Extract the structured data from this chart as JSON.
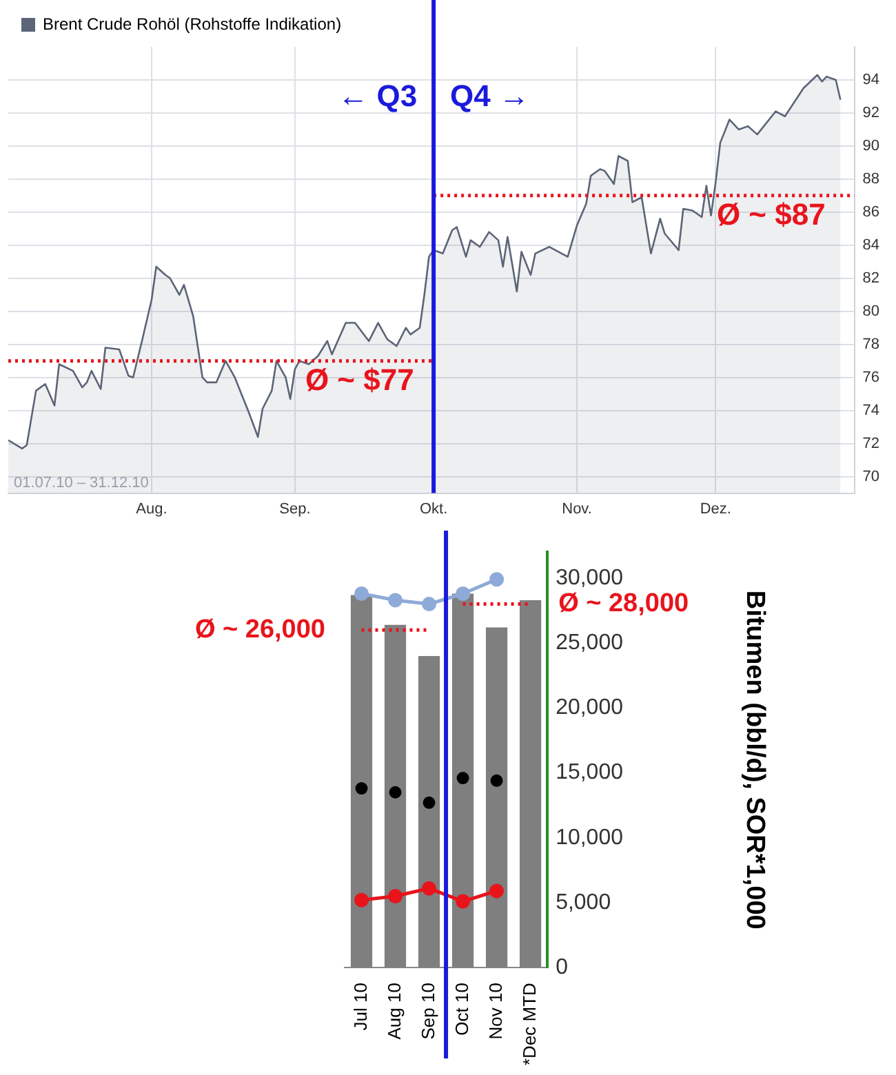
{
  "chart_data": [
    {
      "type": "area",
      "x": [
        "--07-01",
        "--07-04",
        "--07-05",
        "--07-07",
        "--07-09",
        "--07-11",
        "--07-12",
        "--07-15",
        "--07-17",
        "--07-18",
        "--07-19",
        "--07-21",
        "--07-22",
        "--07-25",
        "--07-27",
        "--07-28",
        "--07-30",
        "--08-01",
        "--08-02",
        "--08-04",
        "--08-05",
        "--08-07",
        "--08-08",
        "--08-10",
        "--08-12",
        "--08-13",
        "--08-15",
        "--08-17",
        "--08-19",
        "--08-22",
        "--08-24",
        "--08-25",
        "--08-27",
        "--08-28",
        "--08-30",
        "--08-31",
        "--09-01",
        "--09-02",
        "--09-04",
        "--09-06",
        "--09-08",
        "--09-09",
        "--09-12",
        "--09-14",
        "--09-17",
        "--09-19",
        "--09-21",
        "--09-23",
        "--09-25",
        "--09-26",
        "--09-28",
        "--09-29",
        "--09-30",
        "--10-01",
        "--10-03",
        "--10-05",
        "--10-06",
        "--10-08",
        "--10-09",
        "--10-11",
        "--10-13",
        "--10-15",
        "--10-16",
        "--10-17",
        "--10-19",
        "--10-20",
        "--10-22",
        "--10-23",
        "--10-26",
        "--10-28",
        "--10-30",
        "--11-01",
        "--11-03",
        "--11-04",
        "--11-06",
        "--11-07",
        "--11-09",
        "--11-10",
        "--11-12",
        "--11-13",
        "--11-15",
        "--11-16",
        "--11-17",
        "--11-19",
        "--11-20",
        "--11-23",
        "--11-24",
        "--11-26",
        "--11-28",
        "--11-29",
        "--11-30",
        "--12-01",
        "--12-02",
        "--12-04",
        "--12-06",
        "--12-08",
        "--12-10",
        "--12-14",
        "--12-16",
        "--12-20",
        "--12-23",
        "--12-24",
        "--12-25",
        "--12-27",
        "--12-28"
      ],
      "series": [
        {
          "name": "Brent Crude Rohöl (Rohstoffe Indikation)",
          "color": "#5b6577",
          "values": [
            72.2,
            71.7,
            71.9,
            75.2,
            75.6,
            74.3,
            76.8,
            76.4,
            75.4,
            75.7,
            76.4,
            75.3,
            77.8,
            77.7,
            76.1,
            76.0,
            78.3,
            80.7,
            82.7,
            82.2,
            82.0,
            81.0,
            81.6,
            79.7,
            76.0,
            75.7,
            75.7,
            77.0,
            76.0,
            73.9,
            72.4,
            74.1,
            75.2,
            77.0,
            76.0,
            74.7,
            76.5,
            77.0,
            76.8,
            77.3,
            78.2,
            77.4,
            79.3,
            79.3,
            78.2,
            79.3,
            78.3,
            77.9,
            79.0,
            78.6,
            79.0,
            81.0,
            83.3,
            83.7,
            83.5,
            84.9,
            85.1,
            83.3,
            84.3,
            83.9,
            84.8,
            84.3,
            82.7,
            84.5,
            81.2,
            83.6,
            82.2,
            83.5,
            83.9,
            83.6,
            83.3,
            85.2,
            86.5,
            88.2,
            88.6,
            88.5,
            87.7,
            89.4,
            89.1,
            86.6,
            86.9,
            85.2,
            83.5,
            85.6,
            84.7,
            83.7,
            86.2,
            86.1,
            85.7,
            87.6,
            85.8,
            87.8,
            90.2,
            91.6,
            91.0,
            91.2,
            90.7,
            92.1,
            91.8,
            93.5,
            94.3,
            93.9,
            94.2,
            94.0,
            92.8
          ]
        },
        {
          "type": "line",
          "x": [
            "--07-01",
            "--10-01"
          ],
          "color": "#e8141c",
          "line_style": "dotted",
          "values": [
            77,
            77
          ]
        },
        {
          "type": "line",
          "x": [
            "--10-01",
            "--12-31"
          ],
          "color": "#e8141c",
          "line_style": "dotted",
          "values": [
            87,
            87
          ]
        }
      ],
      "xlim": [
        "--07-01",
        "--12-31"
      ],
      "xticks": [
        {
          "value": "--08-01",
          "label": "Aug."
        },
        {
          "value": "--09-01",
          "label": "Sep."
        },
        {
          "value": "--10-01",
          "label": "Okt."
        },
        {
          "value": "--11-01",
          "label": "Nov."
        },
        {
          "value": "--12-01",
          "label": "Dez."
        }
      ],
      "ylim": [
        69,
        96
      ],
      "yticks": [
        70,
        72,
        74,
        76,
        78,
        80,
        82,
        84,
        86,
        88,
        90,
        92,
        94
      ],
      "grid": true,
      "legend": "top left",
      "ref_lines": [
        {
          "axis": "x",
          "value": "--10-01",
          "color": "#1a1adc"
        }
      ],
      "annotations": [
        "← Q3",
        "Q4 →",
        {
          "text": "Ø ~ $77",
          "x": "--09-15",
          "y": 77
        },
        {
          "text": "Ø ~ $87",
          "x": "--12-13",
          "y": 87
        },
        "01.07.10 – 31.12.10"
      ]
    },
    {
      "type": "bar",
      "categories": [
        "Jul 10",
        "Aug 10",
        "Sep 10",
        "Oct 10",
        "Nov 10",
        "*Dec MTD"
      ],
      "series": [
        {
          "color": "#7f7f7f",
          "values": [
            28700,
            26400,
            24000,
            28800,
            26200,
            28300
          ]
        },
        {
          "type": "line",
          "color": "#8eaad8",
          "marker": "circle",
          "values": [
            28800,
            28300,
            28000,
            28800,
            29900,
            null
          ]
        },
        {
          "type": "scatter",
          "color": "#000000",
          "marker": "circle",
          "x": [
            "Jul 10",
            "Aug 10",
            "Sep 10",
            "Oct 10",
            "Nov 10"
          ],
          "values": [
            13800,
            13500,
            12700,
            14600,
            14400
          ]
        },
        {
          "type": "line",
          "color": "#e8141c",
          "marker": "circle",
          "values": [
            5200,
            5500,
            6100,
            5100,
            5900,
            null
          ]
        },
        {
          "type": "line",
          "color": "#e8141c",
          "line_style": "dotted",
          "values": [
            26000,
            26000,
            26000,
            null,
            null,
            null
          ]
        },
        {
          "type": "line",
          "color": "#e8141c",
          "line_style": "dotted",
          "values": [
            null,
            null,
            null,
            28000,
            28000,
            28000
          ]
        }
      ],
      "ylim": [
        0,
        32000
      ],
      "yticks": [
        {
          "value": 0,
          "label": "0"
        },
        {
          "value": 5000,
          "label": "5,000"
        },
        {
          "value": 10000,
          "label": "10,000"
        },
        {
          "value": 15000,
          "label": "15,000"
        },
        {
          "value": 20000,
          "label": "20,000"
        },
        {
          "value": 25000,
          "label": "25,000"
        },
        {
          "value": 30000,
          "label": "30,000"
        }
      ],
      "ylabel": "Bitumen (bbl/d), SOR*1,000",
      "ref_lines": [
        {
          "axis": "x",
          "value": "Oct 10",
          "color": "#1a1adc"
        }
      ],
      "annotations": [
        {
          "text": "Ø ~ 26,000",
          "x": "Jul 10",
          "y": 26000
        },
        {
          "text": "Ø ~ 28,000",
          "x": "*Dec MTD",
          "y": 28000
        }
      ]
    }
  ]
}
